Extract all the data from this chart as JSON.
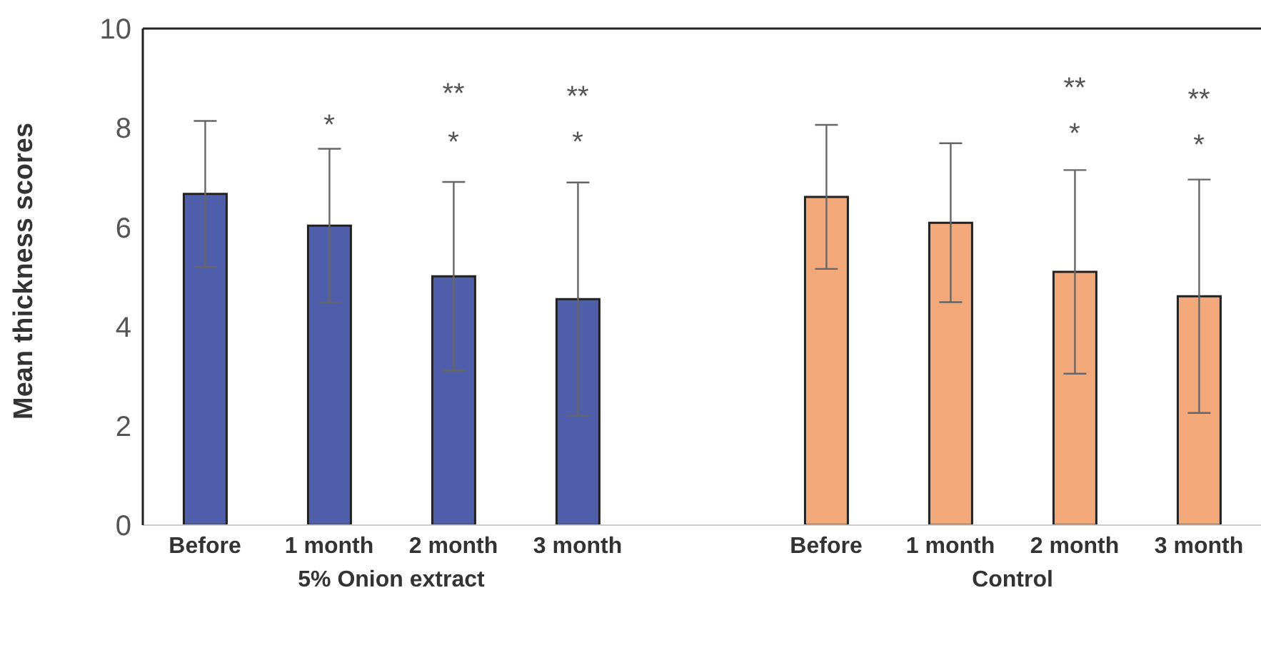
{
  "chart_data": {
    "type": "bar",
    "ylabel": "Mean thickness scores",
    "categories": [
      "Before",
      "1 month",
      "2 month",
      "3 month",
      null,
      "Before",
      "1 month",
      "2 month",
      "3 month"
    ],
    "values": [
      6.67,
      6.03,
      5.01,
      4.55,
      null,
      6.61,
      6.09,
      5.1,
      4.61
    ],
    "errors": [
      1.47,
      1.55,
      1.9,
      2.35,
      null,
      1.45,
      1.6,
      2.05,
      2.35
    ],
    "colors": [
      "#4f5fab",
      "#4f5fab",
      "#4f5fab",
      "#4f5fab",
      "#4f5fab",
      "#f2a878",
      "#f2a878",
      "#f2a878",
      "#f2a878"
    ],
    "ylim": [
      0,
      10
    ],
    "yticks": [
      0,
      2,
      4,
      6,
      8,
      10
    ],
    "grid": false,
    "legend": false,
    "annotations": [
      "5% Onion extract",
      "Control",
      "*",
      "**",
      "*",
      "**",
      "*",
      "**",
      "*",
      "**",
      "*"
    ]
  }
}
